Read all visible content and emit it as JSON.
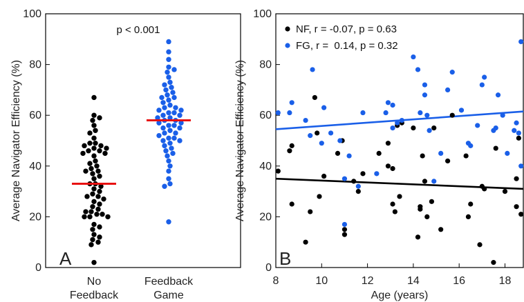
{
  "colors": {
    "nf": "#000000",
    "fg": "#1a5fe8",
    "mean": "#e81010"
  },
  "chart_data": [
    {
      "type": "scatter",
      "panel_label": "A",
      "annotation": "p < 0.001",
      "ylabel": "Average Navigator Efficiency (%)",
      "ylim": [
        0,
        100
      ],
      "yticks": [
        "0",
        "20",
        "40",
        "60",
        "80",
        "100"
      ],
      "categories": [
        {
          "line1": "No",
          "line2": "Feedback"
        },
        {
          "line1": "Feedback",
          "line2": "Game"
        }
      ],
      "grid": false,
      "series": [
        {
          "category": 0,
          "mean": 33,
          "values": [
            67,
            60,
            59,
            58,
            56,
            54,
            53,
            51,
            49,
            49,
            48,
            48,
            47,
            47,
            46,
            46,
            45,
            45,
            44,
            42,
            41,
            40,
            39,
            38,
            38,
            37,
            36,
            35,
            33,
            33,
            32,
            31,
            30,
            29,
            28,
            28,
            27,
            26,
            25,
            24,
            23,
            22,
            22,
            21,
            21,
            20,
            20,
            20,
            17,
            16,
            15,
            13,
            12,
            11,
            10,
            9,
            2
          ]
        },
        {
          "category": 1,
          "mean": 58,
          "values": [
            89,
            85,
            82,
            79,
            78,
            77,
            75,
            73,
            72,
            71,
            70,
            69,
            68,
            67,
            67,
            66,
            65,
            64,
            63,
            63,
            62,
            62,
            61,
            61,
            60,
            60,
            59,
            59,
            58,
            58,
            57,
            57,
            56,
            56,
            55,
            55,
            54,
            53,
            53,
            52,
            51,
            51,
            50,
            50,
            49,
            48,
            47,
            46,
            45,
            44,
            42,
            40,
            38,
            35,
            33,
            32,
            18
          ]
        }
      ]
    },
    {
      "type": "scatter",
      "panel_label": "B",
      "xlabel": "Age (years)",
      "ylabel": "Average Navigator Efficiency (%)",
      "xlim": [
        8,
        18.8
      ],
      "ylim": [
        0,
        100
      ],
      "xticks": [
        "8",
        "10",
        "12",
        "14",
        "16",
        "18"
      ],
      "yticks": [
        "0",
        "20",
        "40",
        "60",
        "80",
        "100"
      ],
      "grid": false,
      "legend_position": "top-left",
      "series": [
        {
          "name": "NF, r = -0.07, p = 0.63",
          "fit": {
            "x": [
              8,
              18.8
            ],
            "y": [
              35,
              31
            ]
          },
          "points": [
            [
              8.1,
              38
            ],
            [
              8.6,
              46
            ],
            [
              8.7,
              48
            ],
            [
              8.7,
              25
            ],
            [
              9.3,
              10
            ],
            [
              9.5,
              22
            ],
            [
              9.7,
              67
            ],
            [
              9.8,
              53
            ],
            [
              9.9,
              28
            ],
            [
              10.1,
              36
            ],
            [
              10.7,
              45
            ],
            [
              10.9,
              50
            ],
            [
              11,
              15
            ],
            [
              11,
              13
            ],
            [
              11.4,
              34
            ],
            [
              11.6,
              30
            ],
            [
              11.8,
              37
            ],
            [
              12.5,
              45
            ],
            [
              12.9,
              40
            ],
            [
              12.9,
              49
            ],
            [
              13.1,
              25
            ],
            [
              13.1,
              39
            ],
            [
              13.2,
              22
            ],
            [
              13.3,
              56
            ],
            [
              13.4,
              28
            ],
            [
              13.5,
              57
            ],
            [
              14,
              55
            ],
            [
              14.2,
              12
            ],
            [
              14.3,
              24
            ],
            [
              14.3,
              23
            ],
            [
              14.4,
              44
            ],
            [
              14.5,
              34
            ],
            [
              14.6,
              20
            ],
            [
              14.8,
              26
            ],
            [
              14.9,
              55
            ],
            [
              15.2,
              15
            ],
            [
              15.5,
              42
            ],
            [
              15.7,
              60
            ],
            [
              16.3,
              44
            ],
            [
              16.4,
              20
            ],
            [
              16.5,
              25
            ],
            [
              16.9,
              9
            ],
            [
              17,
              32
            ],
            [
              17.1,
              31
            ],
            [
              17.5,
              2
            ],
            [
              17.6,
              47
            ],
            [
              18,
              30
            ],
            [
              18.5,
              24
            ],
            [
              18.5,
              35
            ],
            [
              18.6,
              51
            ],
            [
              18.7,
              21
            ]
          ]
        },
        {
          "name": "FG, r =  0.14, p = 0.32",
          "fit": {
            "x": [
              8,
              18.8
            ],
            "y": [
              54.5,
              61.5
            ]
          },
          "points": [
            [
              8.1,
              61
            ],
            [
              8.6,
              61
            ],
            [
              8.7,
              65
            ],
            [
              9.3,
              58
            ],
            [
              9.5,
              52
            ],
            [
              9.6,
              78
            ],
            [
              10,
              49
            ],
            [
              10.1,
              63
            ],
            [
              10.4,
              53
            ],
            [
              10.8,
              50
            ],
            [
              11,
              35
            ],
            [
              11,
              17
            ],
            [
              11.2,
              44
            ],
            [
              11.6,
              32
            ],
            [
              11.8,
              61
            ],
            [
              12.4,
              37
            ],
            [
              12.8,
              61
            ],
            [
              12.9,
              65
            ],
            [
              13.1,
              55
            ],
            [
              13.1,
              64
            ],
            [
              13.3,
              57
            ],
            [
              13.5,
              58
            ],
            [
              14,
              83
            ],
            [
              14.2,
              78
            ],
            [
              14.3,
              61
            ],
            [
              14.5,
              72
            ],
            [
              14.5,
              68
            ],
            [
              14.6,
              60
            ],
            [
              14.7,
              54
            ],
            [
              14.9,
              34
            ],
            [
              15.2,
              45
            ],
            [
              15.5,
              70
            ],
            [
              15.7,
              77
            ],
            [
              16.1,
              62
            ],
            [
              16.4,
              49
            ],
            [
              16.5,
              48
            ],
            [
              16.8,
              56
            ],
            [
              17,
              72
            ],
            [
              17.1,
              75
            ],
            [
              17.5,
              54
            ],
            [
              17.6,
              55
            ],
            [
              17.7,
              68
            ],
            [
              17.9,
              60
            ],
            [
              18.1,
              45
            ],
            [
              18.4,
              54
            ],
            [
              18.5,
              57
            ],
            [
              18.6,
              53
            ],
            [
              18.7,
              89
            ],
            [
              18.7,
              40
            ]
          ]
        }
      ]
    }
  ]
}
